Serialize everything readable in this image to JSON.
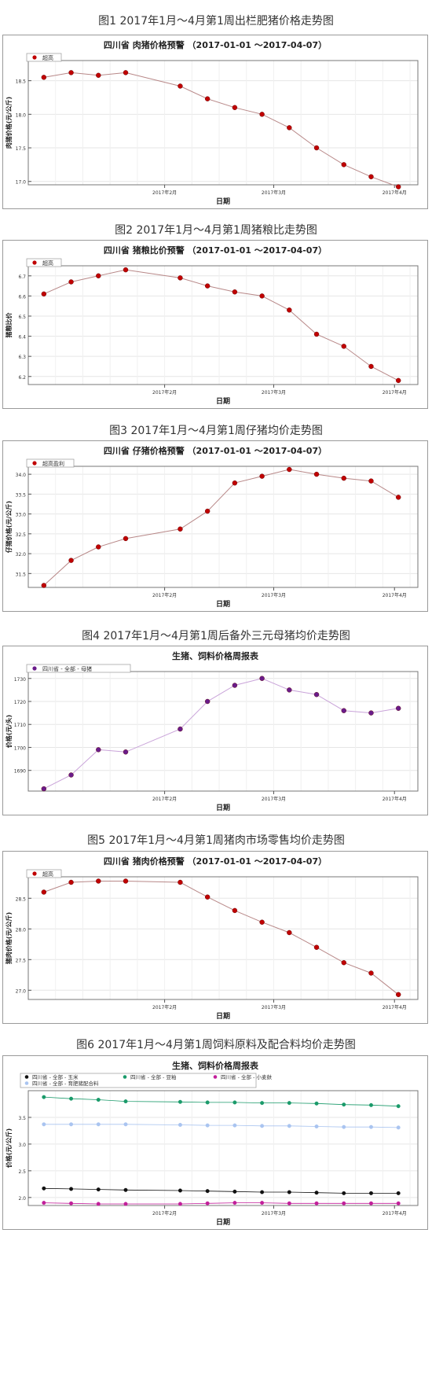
{
  "captions": [
    "图1 2017年1月～4月第1周出栏肥猪价格走势图",
    "图2 2017年1月～4月第1周猪粮比走势图",
    "图3 2017年1月～4月第1周仔猪均价走势图",
    "图4 2017年1月～4月第1周后备外三元母猪均价走势图",
    "图5 2017年1月～4月第1周猪肉市场零售均价走势图",
    "图6 2017年1月～4月第1周饲料原料及配合料均价走势图"
  ],
  "colors": {
    "red_marker": "#c00000",
    "red_line": "#b88888",
    "purple_marker": "#6a1b8a",
    "purple_line": "#c9a3d9",
    "corn": "#111111",
    "soy": "#1a9a6a",
    "wheat": "#c21f9a",
    "feed": "#a9c4f0"
  },
  "chart_data": [
    {
      "type": "line",
      "title": "四川省 肉猪价格预警 （2017-01-01 ～2017-04-07）",
      "xlabel": "日期",
      "ylabel": "肉猪价格(元/公斤)",
      "x_ticks": [
        "2017年2月",
        "2017年3月",
        "2017年4月"
      ],
      "y_ticks": [
        "17.0",
        "17.5",
        "18.0",
        "18.5"
      ],
      "ylim": [
        16.95,
        18.8
      ],
      "legend_position": "top-left",
      "series": [
        {
          "name": "超高",
          "x": [
            "2017-01-01",
            "2017-01-08",
            "2017-01-15",
            "2017-01-22",
            "2017-02-05",
            "2017-02-12",
            "2017-02-19",
            "2017-02-26",
            "2017-03-05",
            "2017-03-12",
            "2017-03-19",
            "2017-03-26",
            "2017-04-02"
          ],
          "y": [
            18.55,
            18.62,
            18.58,
            18.62,
            18.42,
            18.23,
            18.1,
            18.0,
            17.8,
            17.5,
            17.25,
            17.07,
            16.92
          ]
        }
      ]
    },
    {
      "type": "line",
      "title": "四川省 猪粮比价预警 （2017-01-01 ～2017-04-07）",
      "xlabel": "日期",
      "ylabel": "猪粮比价",
      "x_ticks": [
        "2017年2月",
        "2017年3月",
        "2017年4月"
      ],
      "y_ticks": [
        "6.2",
        "6.3",
        "6.4",
        "6.5",
        "6.6",
        "6.7"
      ],
      "ylim": [
        6.16,
        6.75
      ],
      "legend_position": "top-left",
      "series": [
        {
          "name": "超高",
          "x": [
            "2017-01-01",
            "2017-01-08",
            "2017-01-15",
            "2017-01-22",
            "2017-02-05",
            "2017-02-12",
            "2017-02-19",
            "2017-02-26",
            "2017-03-05",
            "2017-03-12",
            "2017-03-19",
            "2017-03-26",
            "2017-04-02"
          ],
          "y": [
            6.61,
            6.67,
            6.7,
            6.73,
            6.69,
            6.65,
            6.62,
            6.6,
            6.53,
            6.41,
            6.35,
            6.25,
            6.18
          ]
        }
      ]
    },
    {
      "type": "line",
      "title": "四川省 仔猪价格预警 （2017-01-01 ～2017-04-07）",
      "xlabel": "日期",
      "ylabel": "仔猪价格(元/公斤)",
      "x_ticks": [
        "2017年2月",
        "2017年3月",
        "2017年4月"
      ],
      "y_ticks": [
        "31.5",
        "32.0",
        "32.5",
        "33.0",
        "33.5",
        "34.0"
      ],
      "ylim": [
        31.15,
        34.2
      ],
      "legend_position": "top-left",
      "series": [
        {
          "name": "超高盈利",
          "x": [
            "2017-01-01",
            "2017-01-08",
            "2017-01-15",
            "2017-01-22",
            "2017-02-05",
            "2017-02-12",
            "2017-02-19",
            "2017-02-26",
            "2017-03-05",
            "2017-03-12",
            "2017-03-19",
            "2017-03-26",
            "2017-04-02"
          ],
          "y": [
            31.2,
            31.83,
            32.17,
            32.38,
            32.62,
            33.07,
            33.78,
            33.95,
            34.12,
            34.0,
            33.9,
            33.83,
            33.42
          ]
        }
      ]
    },
    {
      "type": "line",
      "title": "生猪、饲料价格周报表",
      "xlabel": "日期",
      "ylabel": "价格(元/头)",
      "x_ticks": [
        "2017年2月",
        "2017年3月",
        "2017年4月"
      ],
      "y_ticks": [
        "1690",
        "1700",
        "1710",
        "1720",
        "1730"
      ],
      "ylim": [
        1681,
        1733
      ],
      "legend_position": "top-left",
      "series": [
        {
          "name": "四川省 - 全部 - 母猪",
          "x": [
            "2017-01-01",
            "2017-01-08",
            "2017-01-15",
            "2017-01-22",
            "2017-02-05",
            "2017-02-12",
            "2017-02-19",
            "2017-02-26",
            "2017-03-05",
            "2017-03-12",
            "2017-03-19",
            "2017-03-26",
            "2017-04-02"
          ],
          "y": [
            1682,
            1688,
            1699,
            1698,
            1708,
            1720,
            1727,
            1730,
            1725,
            1723,
            1716,
            1715,
            1717
          ]
        }
      ]
    },
    {
      "type": "line",
      "title": "四川省 猪肉价格预警 （2017-01-01 ～2017-04-07）",
      "xlabel": "日期",
      "ylabel": "猪肉价格(元/公斤)",
      "x_ticks": [
        "2017年2月",
        "2017年3月",
        "2017年4月"
      ],
      "y_ticks": [
        "27.0",
        "27.5",
        "28.0",
        "28.5"
      ],
      "ylim": [
        26.85,
        28.85
      ],
      "legend_position": "top-left",
      "series": [
        {
          "name": "超高",
          "x": [
            "2017-01-01",
            "2017-01-08",
            "2017-01-15",
            "2017-01-22",
            "2017-02-05",
            "2017-02-12",
            "2017-02-19",
            "2017-02-26",
            "2017-03-05",
            "2017-03-12",
            "2017-03-19",
            "2017-03-26",
            "2017-04-02"
          ],
          "y": [
            28.6,
            28.76,
            28.78,
            28.78,
            28.76,
            28.52,
            28.3,
            28.11,
            27.94,
            27.7,
            27.45,
            27.28,
            26.93
          ]
        }
      ]
    },
    {
      "type": "line",
      "title": "生猪、饲料价格周报表",
      "xlabel": "日期",
      "ylabel": "价格(元/公斤)",
      "x_ticks": [
        "2017年2月",
        "2017年3月",
        "2017年4月"
      ],
      "y_ticks": [
        "2.0",
        "2.5",
        "3.0",
        "3.5"
      ],
      "ylim": [
        1.85,
        4.0
      ],
      "legend_position": "top",
      "series": [
        {
          "name": "四川省 - 全部 - 玉米",
          "color": "corn",
          "x": [
            "2017-01-01",
            "2017-01-08",
            "2017-01-15",
            "2017-01-22",
            "2017-02-05",
            "2017-02-12",
            "2017-02-19",
            "2017-02-26",
            "2017-03-05",
            "2017-03-12",
            "2017-03-19",
            "2017-03-26",
            "2017-04-02"
          ],
          "y": [
            2.17,
            2.16,
            2.15,
            2.14,
            2.13,
            2.12,
            2.11,
            2.1,
            2.1,
            2.09,
            2.08,
            2.08,
            2.08
          ]
        },
        {
          "name": "四川省 - 全部 - 豆粕",
          "color": "soy",
          "x": [
            "2017-01-01",
            "2017-01-08",
            "2017-01-15",
            "2017-01-22",
            "2017-02-05",
            "2017-02-12",
            "2017-02-19",
            "2017-02-26",
            "2017-03-05",
            "2017-03-12",
            "2017-03-19",
            "2017-03-26",
            "2017-04-02"
          ],
          "y": [
            3.88,
            3.85,
            3.83,
            3.8,
            3.79,
            3.78,
            3.78,
            3.77,
            3.77,
            3.76,
            3.74,
            3.73,
            3.71
          ]
        },
        {
          "name": "四川省 - 全部 - 小麦麸",
          "color": "wheat",
          "x": [
            "2017-01-01",
            "2017-01-08",
            "2017-01-15",
            "2017-01-22",
            "2017-02-05",
            "2017-02-12",
            "2017-02-19",
            "2017-02-26",
            "2017-03-05",
            "2017-03-12",
            "2017-03-19",
            "2017-03-26",
            "2017-04-02"
          ],
          "y": [
            1.9,
            1.89,
            1.88,
            1.88,
            1.88,
            1.89,
            1.9,
            1.9,
            1.89,
            1.89,
            1.89,
            1.89,
            1.89
          ]
        },
        {
          "name": "四川省 - 全部 - 育肥猪配合料",
          "color": "feed",
          "x": [
            "2017-01-01",
            "2017-01-08",
            "2017-01-15",
            "2017-01-22",
            "2017-02-05",
            "2017-02-12",
            "2017-02-19",
            "2017-02-26",
            "2017-03-05",
            "2017-03-12",
            "2017-03-19",
            "2017-03-26",
            "2017-04-02"
          ],
          "y": [
            3.37,
            3.37,
            3.37,
            3.37,
            3.36,
            3.35,
            3.35,
            3.34,
            3.34,
            3.33,
            3.32,
            3.32,
            3.31
          ]
        }
      ]
    }
  ]
}
